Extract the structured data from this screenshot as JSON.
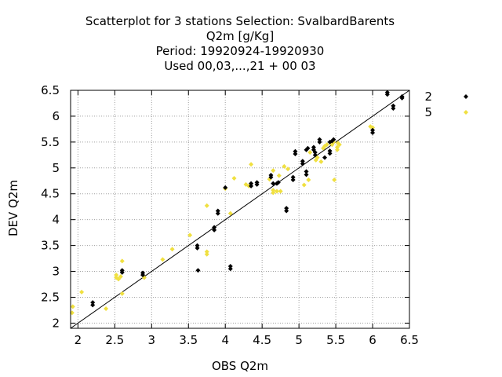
{
  "chart_data": {
    "type": "scatter",
    "title_lines": [
      "Scatterplot for    3 stations Selection: SvalbardBarents",
      "Q2m [g/Kg]",
      "Period: 19920924-19920930",
      "Used  00,03,...,21  + 00 03"
    ],
    "xlabel": "OBS Q2m",
    "ylabel": "DEV Q2m",
    "xlim": [
      1.9,
      6.5
    ],
    "ylim": [
      1.9,
      6.5
    ],
    "xticks": [
      "2",
      "2.5",
      "3",
      "3.5",
      "4",
      "4.5",
      "5",
      "5.5",
      "6",
      "6.5"
    ],
    "yticks": [
      "2",
      "2.5",
      "3",
      "3.5",
      "4",
      "4.5",
      "5",
      "5.5",
      "6",
      "6.5"
    ],
    "grid": true,
    "legend_position": "right",
    "diagonal": [
      [
        1.9,
        1.9
      ],
      [
        6.5,
        6.5
      ]
    ],
    "series": [
      {
        "name": "2",
        "color": "#000000",
        "points": [
          [
            2.2,
            2.35
          ],
          [
            2.2,
            2.4
          ],
          [
            2.6,
            2.98
          ],
          [
            2.6,
            3.02
          ],
          [
            2.88,
            2.93
          ],
          [
            2.88,
            2.97
          ],
          [
            3.62,
            3.45
          ],
          [
            3.62,
            3.5
          ],
          [
            3.63,
            3.02
          ],
          [
            3.85,
            3.8
          ],
          [
            3.85,
            3.85
          ],
          [
            3.9,
            4.12
          ],
          [
            3.9,
            4.17
          ],
          [
            4.0,
            4.62
          ],
          [
            4.07,
            3.05
          ],
          [
            4.07,
            3.1
          ],
          [
            4.35,
            4.65
          ],
          [
            4.35,
            4.7
          ],
          [
            4.43,
            4.68
          ],
          [
            4.43,
            4.72
          ],
          [
            4.62,
            4.82
          ],
          [
            4.62,
            4.86
          ],
          [
            4.65,
            4.7
          ],
          [
            4.7,
            4.7
          ],
          [
            4.72,
            4.72
          ],
          [
            4.83,
            4.17
          ],
          [
            4.83,
            4.22
          ],
          [
            4.92,
            4.77
          ],
          [
            4.92,
            4.82
          ],
          [
            4.95,
            5.27
          ],
          [
            4.95,
            5.32
          ],
          [
            5.05,
            5.08
          ],
          [
            5.05,
            5.13
          ],
          [
            5.1,
            4.87
          ],
          [
            5.1,
            4.93
          ],
          [
            5.1,
            5.35
          ],
          [
            5.12,
            5.38
          ],
          [
            5.2,
            5.35
          ],
          [
            5.2,
            5.4
          ],
          [
            5.22,
            5.25
          ],
          [
            5.22,
            5.3
          ],
          [
            5.28,
            5.5
          ],
          [
            5.28,
            5.55
          ],
          [
            5.35,
            5.2
          ],
          [
            5.42,
            5.28
          ],
          [
            5.42,
            5.33
          ],
          [
            5.42,
            5.5
          ],
          [
            5.45,
            5.52
          ],
          [
            5.47,
            5.55
          ],
          [
            6.0,
            5.68
          ],
          [
            6.0,
            5.73
          ],
          [
            6.2,
            6.42
          ],
          [
            6.2,
            6.46
          ],
          [
            6.28,
            6.15
          ],
          [
            6.28,
            6.2
          ],
          [
            6.4,
            6.35
          ],
          [
            6.4,
            6.38
          ]
        ]
      },
      {
        "name": "5",
        "color": "#f0e040",
        "points": [
          [
            1.92,
            2.2
          ],
          [
            1.93,
            2.32
          ],
          [
            2.05,
            2.6
          ],
          [
            2.38,
            2.28
          ],
          [
            2.52,
            2.88
          ],
          [
            2.52,
            2.93
          ],
          [
            2.55,
            2.85
          ],
          [
            2.58,
            2.9
          ],
          [
            2.6,
            3.2
          ],
          [
            2.6,
            2.57
          ],
          [
            2.9,
            2.88
          ],
          [
            3.15,
            3.23
          ],
          [
            3.28,
            3.43
          ],
          [
            3.52,
            3.7
          ],
          [
            3.75,
            3.33
          ],
          [
            3.75,
            3.38
          ],
          [
            3.75,
            4.27
          ],
          [
            4.0,
            4.6
          ],
          [
            4.07,
            4.12
          ],
          [
            4.12,
            4.8
          ],
          [
            4.28,
            4.68
          ],
          [
            4.32,
            4.65
          ],
          [
            4.35,
            5.07
          ],
          [
            4.6,
            4.78
          ],
          [
            4.65,
            4.52
          ],
          [
            4.65,
            4.57
          ],
          [
            4.65,
            4.95
          ],
          [
            4.7,
            4.55
          ],
          [
            4.73,
            4.85
          ],
          [
            4.75,
            4.55
          ],
          [
            4.8,
            5.03
          ],
          [
            4.85,
            4.98
          ],
          [
            5.07,
            4.67
          ],
          [
            5.13,
            4.77
          ],
          [
            5.15,
            5.3
          ],
          [
            5.23,
            5.15
          ],
          [
            5.25,
            5.2
          ],
          [
            5.3,
            5.12
          ],
          [
            5.33,
            5.38
          ],
          [
            5.35,
            5.42
          ],
          [
            5.38,
            5.45
          ],
          [
            5.45,
            5.45
          ],
          [
            5.47,
            5.5
          ],
          [
            5.48,
            4.77
          ],
          [
            5.52,
            5.35
          ],
          [
            5.52,
            5.4
          ],
          [
            5.53,
            5.48
          ],
          [
            5.55,
            5.45
          ],
          [
            5.97,
            5.8
          ],
          [
            6.0,
            5.78
          ]
        ]
      }
    ]
  }
}
